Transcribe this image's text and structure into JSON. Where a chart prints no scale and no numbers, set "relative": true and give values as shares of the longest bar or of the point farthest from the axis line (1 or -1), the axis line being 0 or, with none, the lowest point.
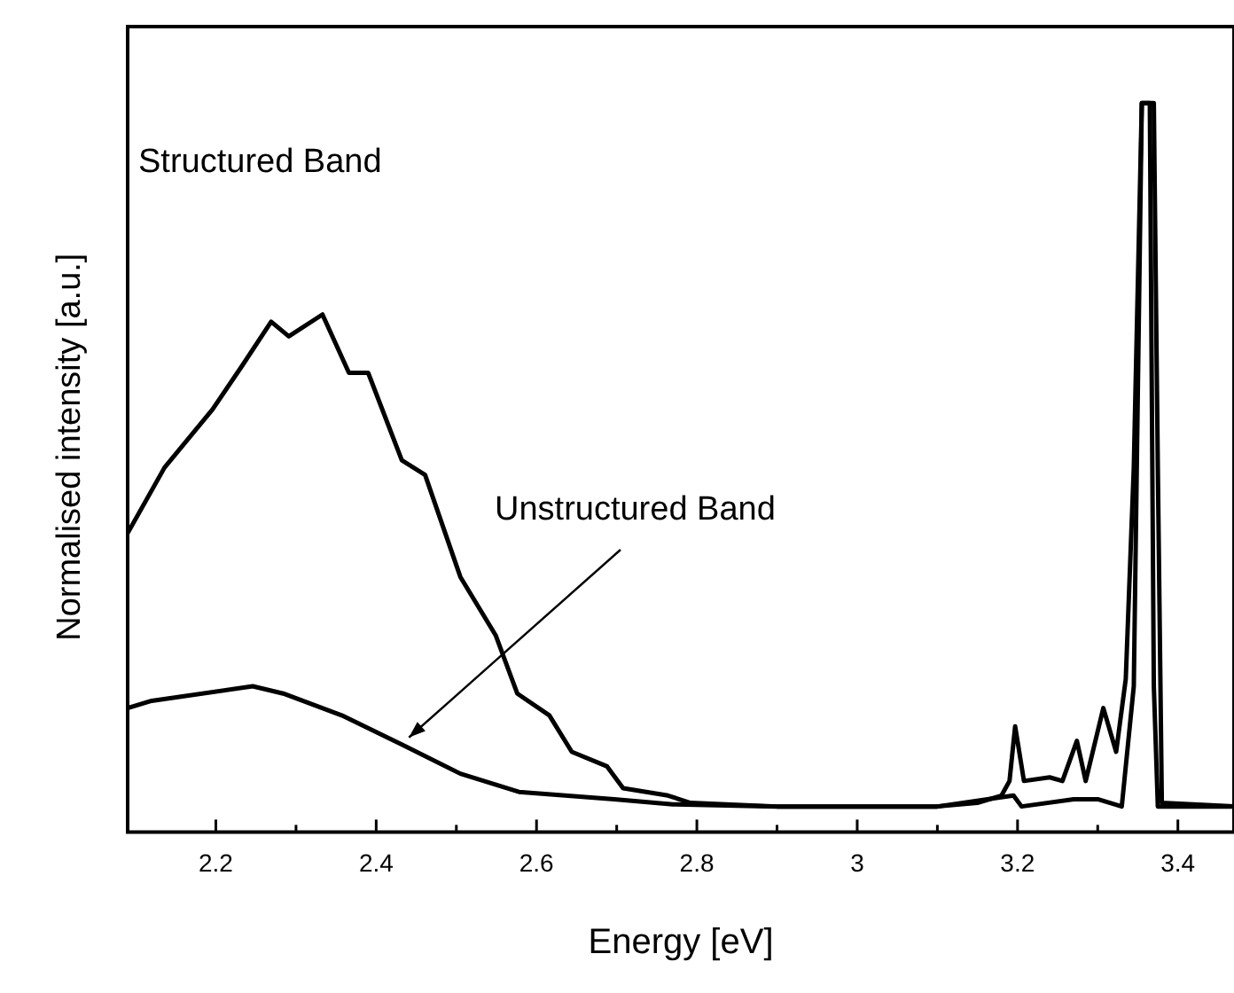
{
  "chart_data": {
    "type": "line",
    "xlabel": "Energy [eV]",
    "ylabel": "Normalised intensity [a.u.]",
    "relative": true,
    "xlim": [
      2.09,
      3.47
    ],
    "xticks": [
      2.2,
      2.4,
      2.6,
      2.8,
      3.0,
      3.2,
      3.4
    ],
    "grid": false,
    "legend": false,
    "marker": "none",
    "line_style": "solid",
    "annotations": [
      "Structured Band",
      {
        "text": "Unstructured Band",
        "x": 2.432,
        "y": 0.12
      }
    ],
    "series": [
      {
        "color": "#000000",
        "x": [
          2.09,
          2.136,
          2.196,
          2.233,
          2.269,
          2.291,
          2.333,
          2.366,
          2.39,
          2.432,
          2.461,
          2.505,
          2.549,
          2.576,
          2.616,
          2.644,
          2.688,
          2.708,
          2.764,
          2.792,
          2.9,
          3.0,
          3.1,
          3.15,
          3.18,
          3.19,
          3.197,
          3.208,
          3.24,
          3.256,
          3.274,
          3.285,
          3.307,
          3.323,
          3.335,
          3.345,
          3.355,
          3.37,
          3.375,
          3.38,
          3.47
        ],
        "values": [
          0.41,
          0.5,
          0.58,
          0.64,
          0.7,
          0.68,
          0.71,
          0.63,
          0.63,
          0.51,
          0.49,
          0.35,
          0.27,
          0.19,
          0.16,
          0.11,
          0.09,
          0.06,
          0.05,
          0.04,
          0.035,
          0.035,
          0.035,
          0.04,
          0.05,
          0.07,
          0.145,
          0.07,
          0.075,
          0.07,
          0.125,
          0.07,
          0.17,
          0.11,
          0.21,
          0.5,
          1,
          1,
          0.5,
          0.04,
          0.035
        ]
      },
      {
        "color": "#000000",
        "x": [
          2.09,
          2.12,
          2.246,
          2.284,
          2.357,
          2.432,
          2.505,
          2.578,
          2.697,
          2.77,
          2.9,
          3.1,
          3.195,
          3.205,
          3.27,
          3.3,
          3.33,
          3.345,
          3.355,
          3.365,
          3.37,
          3.375,
          3.47
        ],
        "values": [
          0.17,
          0.18,
          0.2,
          0.19,
          0.16,
          0.12,
          0.08,
          0.055,
          0.045,
          0.038,
          0.035,
          0.035,
          0.05,
          0.035,
          0.045,
          0.045,
          0.035,
          0.2,
          1,
          1,
          0.2,
          0.035,
          0.035
        ]
      }
    ]
  }
}
